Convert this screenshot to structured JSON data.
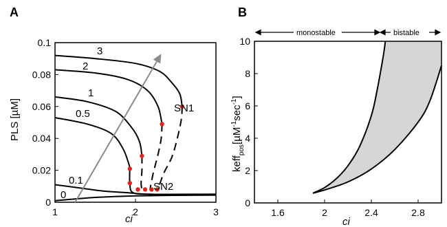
{
  "colors": {
    "bifurcation_point": "#e0261c",
    "arrow": "#8a8a8a",
    "bistable_fill": "#d6d6d8",
    "line": "#000000"
  },
  "chart_data": [
    {
      "panel": "A",
      "type": "line",
      "xlabel": "ci",
      "ylabel": "PLS  [µM]",
      "xlim": [
        1,
        3
      ],
      "ylim": [
        0,
        0.1
      ],
      "x_ticks": [
        "1",
        "2",
        "3"
      ],
      "y_ticks": [
        "0",
        "0.02",
        "0.04",
        "0.06",
        "0.08",
        "0.1"
      ],
      "series": [
        {
          "name": "3",
          "upper": [
            [
              1,
              0.092
            ],
            [
              1.5,
              0.09
            ],
            [
              2.0,
              0.087
            ],
            [
              2.3,
              0.082
            ],
            [
              2.45,
              0.075
            ],
            [
              2.55,
              0.068
            ],
            [
              2.58,
              0.06
            ]
          ]
        },
        {
          "name": "2",
          "upper": [
            [
              1,
              0.083
            ],
            [
              1.5,
              0.081
            ],
            [
              1.9,
              0.077
            ],
            [
              2.15,
              0.07
            ],
            [
              2.28,
              0.06
            ],
            [
              2.33,
              0.049
            ]
          ]
        },
        {
          "name": "1",
          "upper": [
            [
              1,
              0.066
            ],
            [
              1.4,
              0.063
            ],
            [
              1.75,
              0.057
            ],
            [
              1.95,
              0.047
            ],
            [
              2.05,
              0.038
            ],
            [
              2.08,
              0.029
            ]
          ]
        },
        {
          "name": "0.5",
          "upper": [
            [
              1,
              0.053
            ],
            [
              1.4,
              0.049
            ],
            [
              1.7,
              0.043
            ],
            [
              1.85,
              0.033
            ],
            [
              1.93,
              0.022
            ],
            [
              1.94,
              0.021
            ]
          ]
        },
        {
          "name": "0.1",
          "upper": [
            [
              1,
              0.011
            ],
            [
              1.3,
              0.009
            ],
            [
              1.6,
              0.007
            ],
            [
              1.9,
              0.006
            ],
            [
              2.2,
              0.005
            ],
            [
              3.0,
              0.005
            ]
          ]
        },
        {
          "name": "0",
          "upper": [
            [
              1,
              0.001
            ],
            [
              1.5,
              0.003
            ],
            [
              2.0,
              0.004
            ],
            [
              3.0,
              0.0045
            ]
          ]
        }
      ],
      "unstable_branches": [
        [
          [
            2.58,
            0.06
          ],
          [
            2.57,
            0.052
          ],
          [
            2.52,
            0.04
          ],
          [
            2.45,
            0.028
          ],
          [
            2.35,
            0.018
          ],
          [
            2.28,
            0.008
          ]
        ],
        [
          [
            2.33,
            0.049
          ],
          [
            2.32,
            0.04
          ],
          [
            2.28,
            0.03
          ],
          [
            2.22,
            0.018
          ],
          [
            2.18,
            0.008
          ]
        ],
        [
          [
            2.08,
            0.029
          ],
          [
            2.08,
            0.02
          ],
          [
            2.07,
            0.012
          ],
          [
            2.08,
            0.008
          ]
        ]
      ],
      "lower_branches": [
        [
          [
            1.93,
            0.022
          ],
          [
            1.93,
            0.012
          ],
          [
            1.97,
            0.006
          ],
          [
            2.2,
            0.005
          ],
          [
            2.6,
            0.005
          ],
          [
            3.0,
            0.005
          ]
        ]
      ],
      "bifurcation_points": [
        [
          2.58,
          0.06
        ],
        [
          2.33,
          0.049
        ],
        [
          2.08,
          0.029
        ],
        [
          1.93,
          0.021
        ],
        [
          1.93,
          0.012
        ],
        [
          2.03,
          0.008
        ],
        [
          2.12,
          0.008
        ],
        [
          2.2,
          0.008
        ],
        [
          2.27,
          0.008
        ]
      ],
      "annotations": [
        "SN1",
        "SN2"
      ],
      "arrow": {
        "from": [
          1.25,
          0.0
        ],
        "to": [
          2.32,
          0.093
        ]
      }
    },
    {
      "panel": "B",
      "type": "area",
      "xlabel": "ci",
      "ylabel": "keff",
      "ylabel_sub": "pos",
      "ylabel_unit": "[µM",
      "ylabel_sup1": "-1",
      "ylabel_sec": "sec",
      "ylabel_sup2": "-1",
      "ylabel_end": "]",
      "xlim": [
        1.4,
        3.0
      ],
      "ylim": [
        0,
        10
      ],
      "x_ticks": [
        "1.6",
        "2",
        "2.4",
        "2.8"
      ],
      "y_ticks": [
        "0",
        "2",
        "4",
        "6",
        "8",
        "10"
      ],
      "upper_boundary": [
        [
          1.9,
          0.6
        ],
        [
          2.0,
          0.95
        ],
        [
          2.1,
          1.5
        ],
        [
          2.2,
          2.3
        ],
        [
          2.3,
          3.5
        ],
        [
          2.4,
          5.4
        ],
        [
          2.45,
          7.0
        ],
        [
          2.5,
          9.0
        ],
        [
          2.52,
          10
        ]
      ],
      "lower_boundary": [
        [
          1.9,
          0.6
        ],
        [
          2.0,
          0.8
        ],
        [
          2.2,
          1.3
        ],
        [
          2.4,
          2.1
        ],
        [
          2.6,
          3.3
        ],
        [
          2.8,
          5.0
        ],
        [
          2.9,
          6.3
        ],
        [
          3.0,
          8.5
        ]
      ],
      "regions": [
        "monostable",
        "bistable"
      ]
    }
  ]
}
